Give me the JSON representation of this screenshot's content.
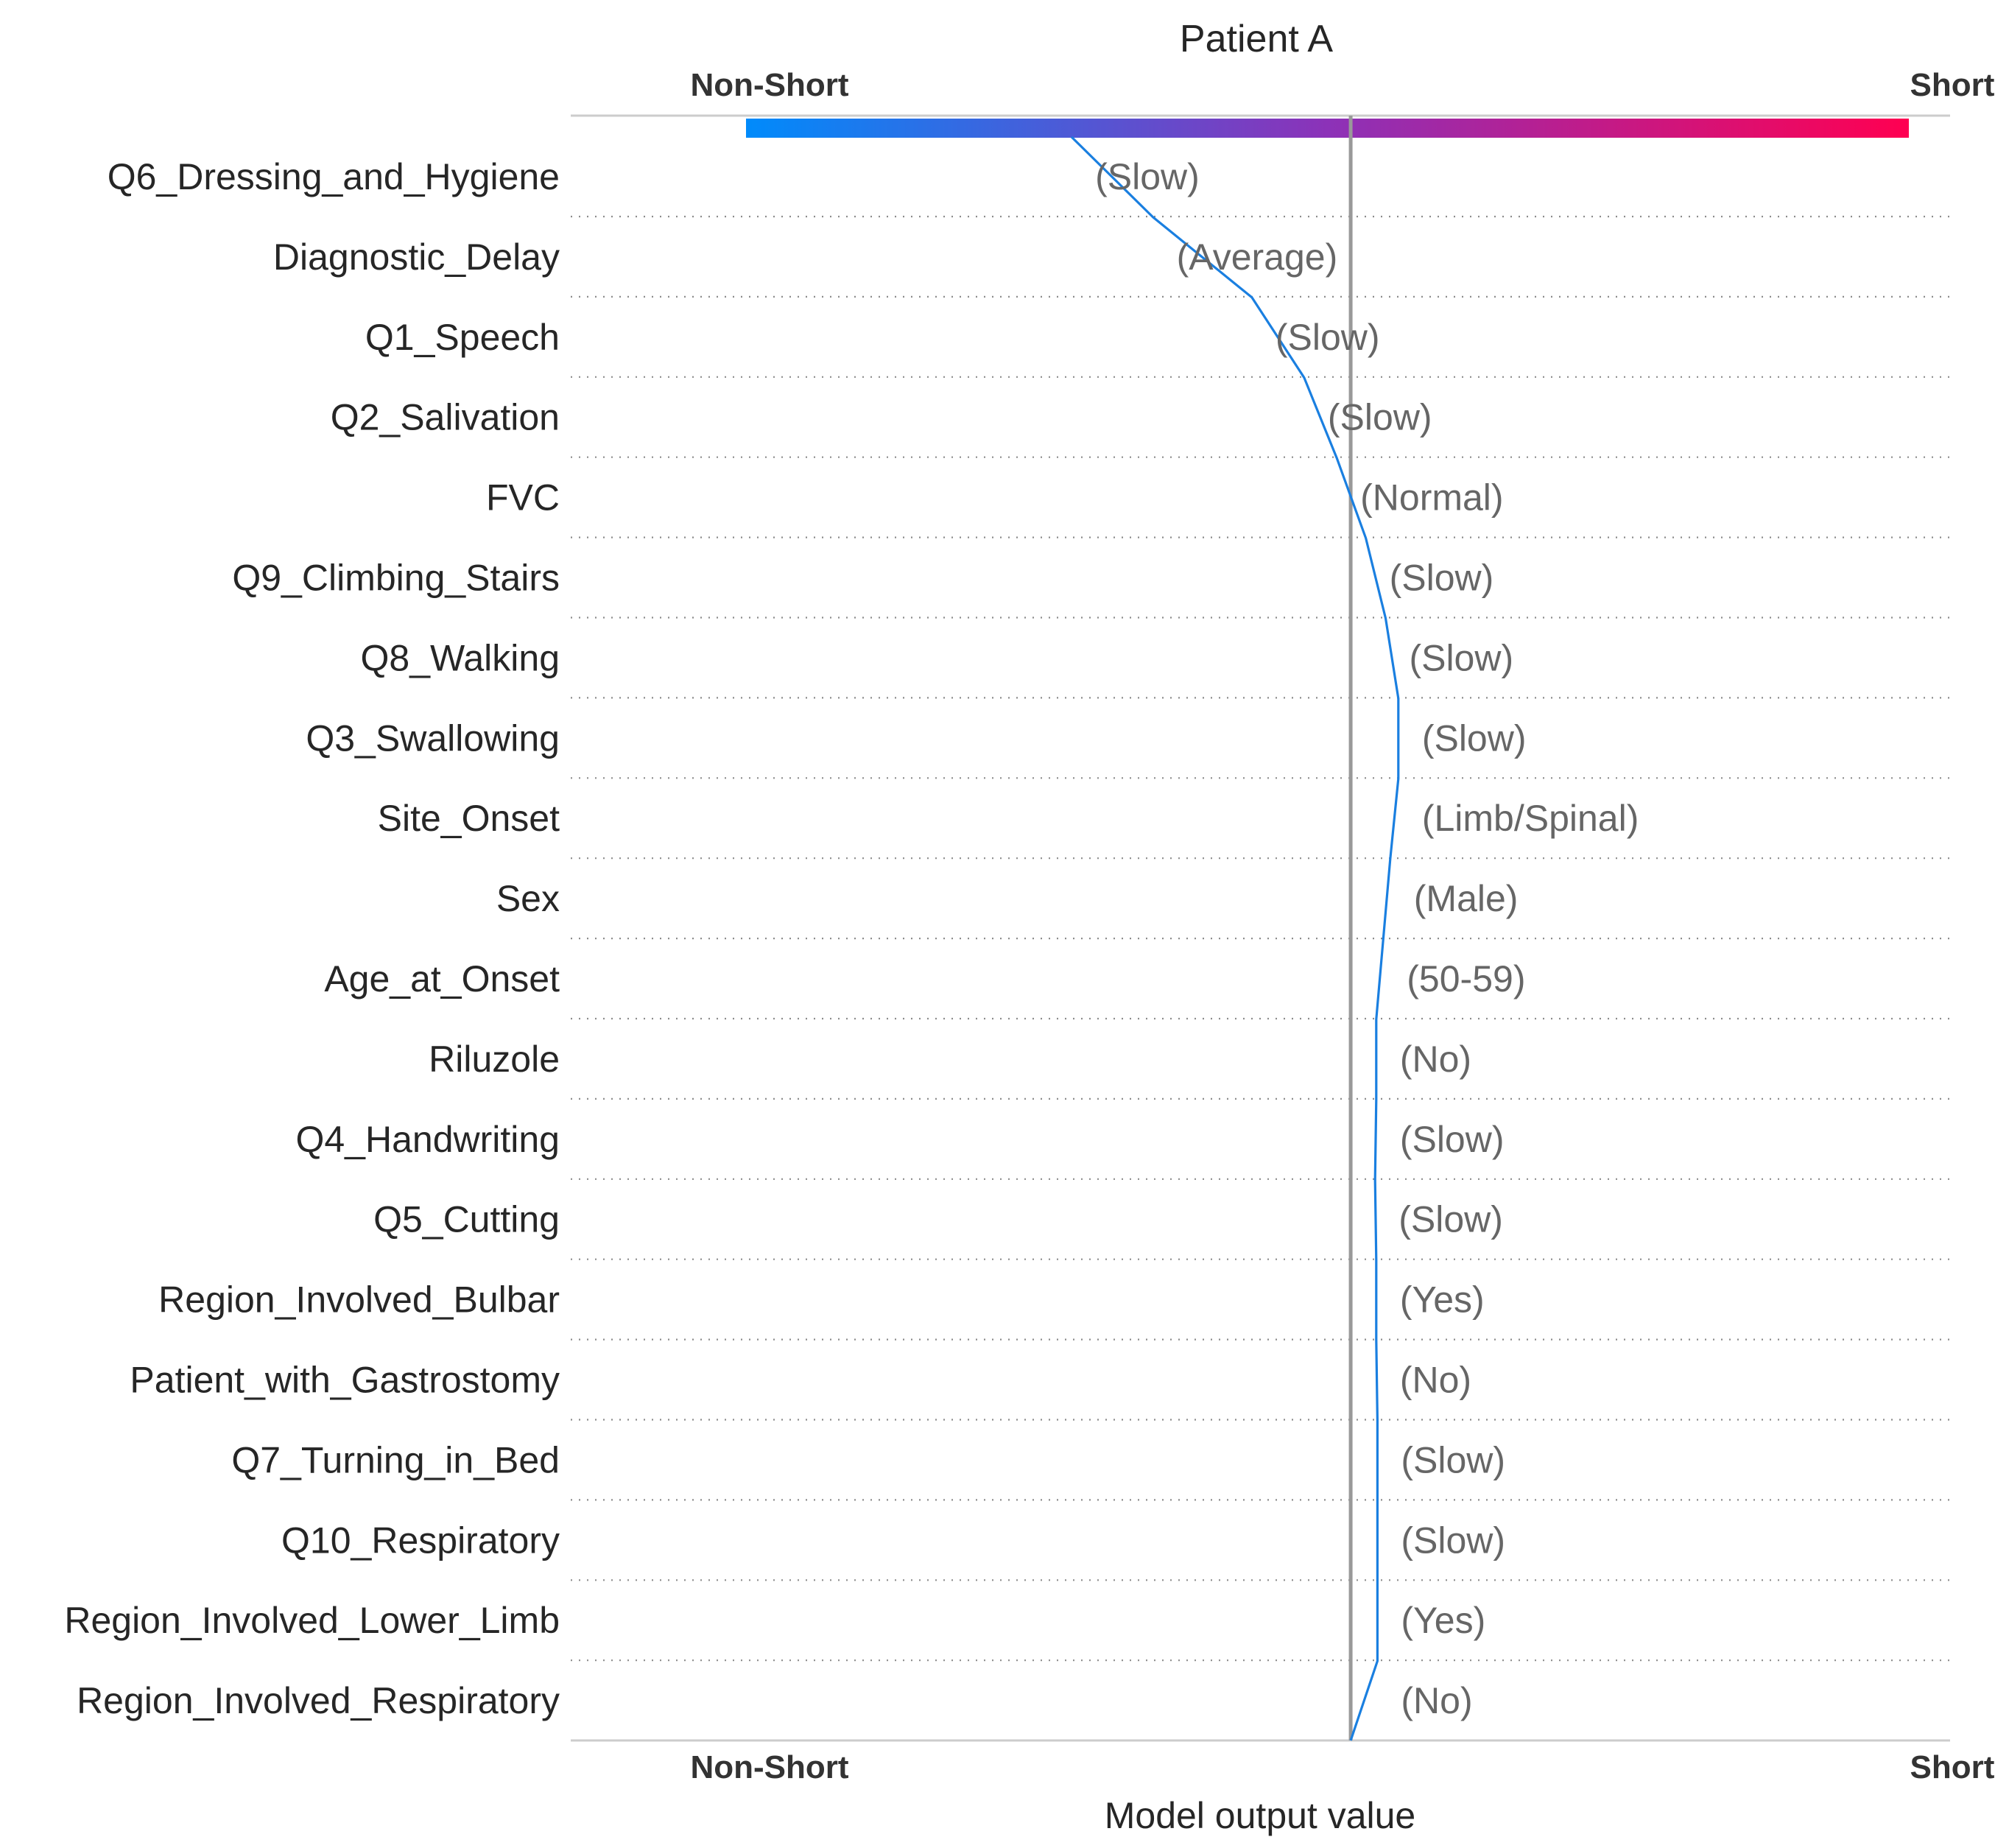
{
  "chart_data": {
    "type": "line",
    "title": "Patient A",
    "xlabel": "Model output value",
    "left_label": "Non-Short",
    "right_label": "Short",
    "xlim": [
      0,
      1
    ],
    "base_value": 0.52,
    "colors": {
      "gradient_start": "#008bfb",
      "gradient_mid": "#8c32b8",
      "gradient_end": "#ff0051",
      "line": "#1a7fe0",
      "base_line": "#999999",
      "axis": "#cccccc",
      "grid": "#8c8c8c"
    },
    "features": [
      {
        "name": "Q6_Dressing_and_Hygiene",
        "value_label": "(Slow)",
        "output": 0.28
      },
      {
        "name": "Diagnostic_Delay",
        "value_label": "(Average)",
        "output": 0.35
      },
      {
        "name": "Q1_Speech",
        "value_label": "(Slow)",
        "output": 0.435
      },
      {
        "name": "Q2_Salivation",
        "value_label": "(Slow)",
        "output": 0.48
      },
      {
        "name": "FVC",
        "value_label": "(Normal)",
        "output": 0.508
      },
      {
        "name": "Q9_Climbing_Stairs",
        "value_label": "(Slow)",
        "output": 0.533
      },
      {
        "name": "Q8_Walking",
        "value_label": "(Slow)",
        "output": 0.55
      },
      {
        "name": "Q3_Swallowing",
        "value_label": "(Slow)",
        "output": 0.561
      },
      {
        "name": "Site_Onset",
        "value_label": "(Limb/Spinal)",
        "output": 0.561
      },
      {
        "name": "Sex",
        "value_label": "(Male)",
        "output": 0.554
      },
      {
        "name": "Age_at_Onset",
        "value_label": "(50-59)",
        "output": 0.548
      },
      {
        "name": "Riluzole",
        "value_label": "(No)",
        "output": 0.542
      },
      {
        "name": "Q4_Handwriting",
        "value_label": "(Slow)",
        "output": 0.542
      },
      {
        "name": "Q5_Cutting",
        "value_label": "(Slow)",
        "output": 0.541
      },
      {
        "name": "Region_Involved_Bulbar",
        "value_label": "(Yes)",
        "output": 0.542
      },
      {
        "name": "Patient_with_Gastrostomy",
        "value_label": "(No)",
        "output": 0.542
      },
      {
        "name": "Q7_Turning_in_Bed",
        "value_label": "(Slow)",
        "output": 0.543
      },
      {
        "name": "Q10_Respiratory",
        "value_label": "(Slow)",
        "output": 0.543
      },
      {
        "name": "Region_Involved_Lower_Limb",
        "value_label": "(Yes)",
        "output": 0.543
      },
      {
        "name": "Region_Involved_Respiratory",
        "value_label": "(No)",
        "output": 0.543
      }
    ],
    "grid": true
  }
}
